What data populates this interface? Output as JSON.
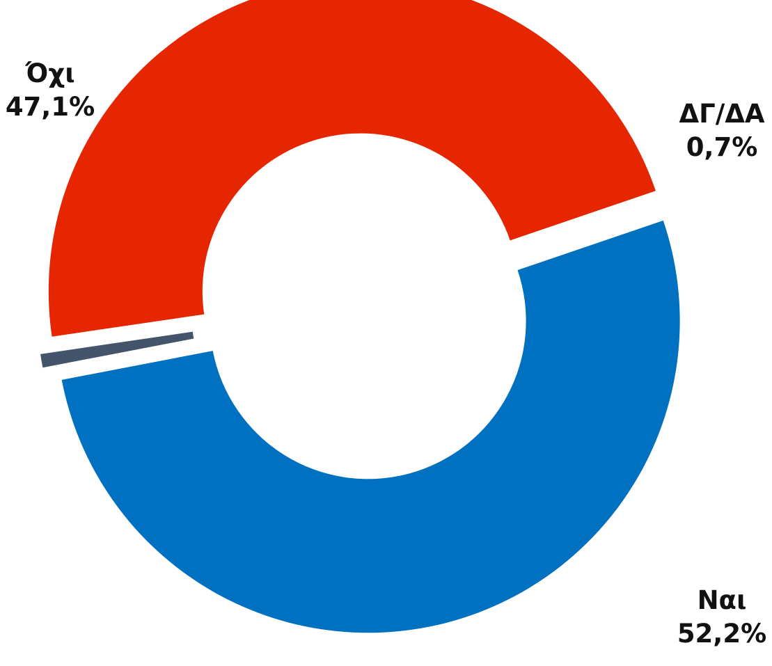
{
  "chart_data": {
    "type": "pie",
    "variant": "donut",
    "legend": "none",
    "slices": [
      {
        "label": "Ναι",
        "value": 52.2,
        "value_label": "52,2%",
        "color": "#0070c0"
      },
      {
        "label": "ΔΓ/ΔΑ",
        "value": 0.7,
        "value_label": "0,7%",
        "color": "#44546a"
      },
      {
        "label": "Όχι",
        "value": 47.1,
        "value_label": "47,1%",
        "color": "#e52600"
      }
    ]
  }
}
